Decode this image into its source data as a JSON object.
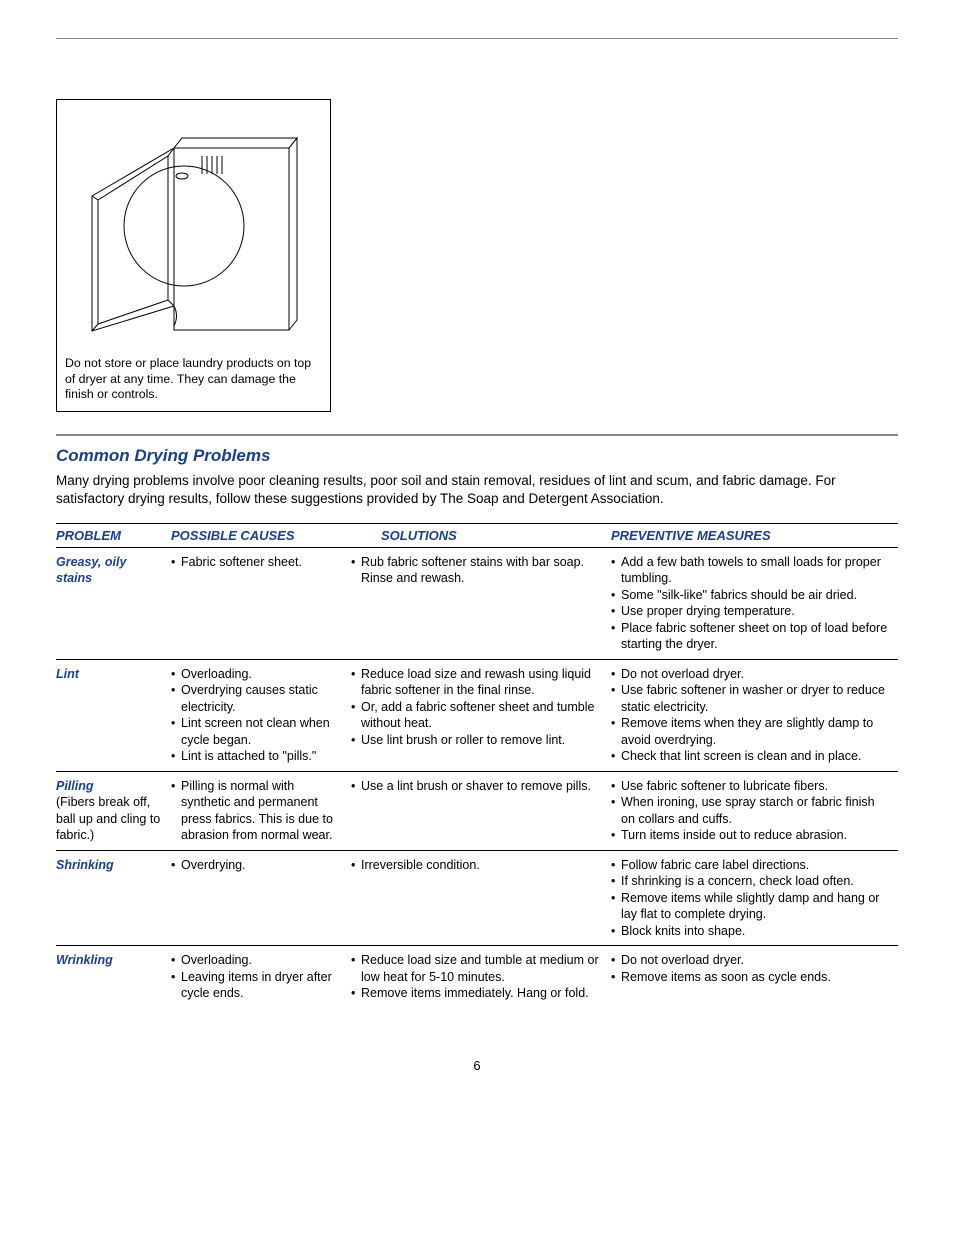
{
  "figure": {
    "caption": "Do not store or place laundry products on top of dryer at any time. They can damage the finish or controls."
  },
  "section": {
    "title": "Common Drying Problems",
    "intro": "Many drying problems involve poor cleaning results, poor soil and stain removal, residues of lint and scum, and fabric damage. For satisfactory drying results, follow these suggestions provided by The Soap and Detergent Association."
  },
  "headers": {
    "problem": "PROBLEM",
    "causes": "POSSIBLE CAUSES",
    "solutions": "SOLUTIONS",
    "preventive": "PREVENTIVE MEASURES"
  },
  "rows": [
    {
      "problem": "Greasy, oily stains",
      "sub": "",
      "causes": [
        "Fabric softener sheet."
      ],
      "solutions": [
        "Rub fabric softener stains with bar soap. Rinse and rewash."
      ],
      "preventive": [
        "Add a few bath towels to small loads for proper tumbling.",
        "Some \"silk-like\" fabrics should be air dried.",
        "Use proper drying temperature.",
        "Place fabric softener sheet on top of load before starting the dryer."
      ]
    },
    {
      "problem": "Lint",
      "sub": "",
      "causes": [
        "Overloading.",
        "Overdrying causes static electricity.",
        "Lint screen not clean when cycle began.",
        "Lint is attached to \"pills.\""
      ],
      "solutions": [
        "Reduce load size and rewash using liquid fabric softener in the final rinse.",
        "Or, add a fabric softener sheet and tumble without heat.",
        "Use lint brush or roller to remove lint."
      ],
      "preventive": [
        "Do not overload dryer.",
        "Use fabric softener in washer or dryer to reduce static electricity.",
        "Remove items when they are slightly damp to avoid overdrying.",
        "Check that lint screen is clean and in place."
      ]
    },
    {
      "problem": "Pilling",
      "sub": "(Fibers break off, ball up and cling to fabric.)",
      "causes": [
        "Pilling is normal with synthetic and permanent press fabrics. This is due to abrasion from normal wear."
      ],
      "solutions": [
        "Use a lint brush or shaver to remove pills."
      ],
      "preventive": [
        "Use fabric softener to lubricate fibers.",
        "When ironing, use spray starch or fabric finish on collars and cuffs.",
        "Turn items inside out to reduce abrasion."
      ]
    },
    {
      "problem": "Shrinking",
      "sub": "",
      "causes": [
        "Overdrying."
      ],
      "solutions": [
        "Irreversible condition."
      ],
      "preventive": [
        "Follow fabric care label directions.",
        "If shrinking is a concern, check load often.",
        "Remove items while slightly damp and hang or lay flat to complete drying.",
        "Block knits into shape."
      ]
    },
    {
      "problem": "Wrinkling",
      "sub": "",
      "causes": [
        "Overloading.",
        "Leaving items in dryer after cycle ends."
      ],
      "solutions": [
        "Reduce load size and tumble at medium or low heat for 5-10 minutes.",
        "Remove items immediately. Hang or fold."
      ],
      "preventive": [
        "Do not overload dryer.",
        "Remove items as soon as cycle ends."
      ]
    }
  ],
  "page_number": "6",
  "colors": {
    "heading_blue": "#1a3f8b",
    "rule_gray": "#888888",
    "text_black": "#000000",
    "background": "#ffffff"
  }
}
